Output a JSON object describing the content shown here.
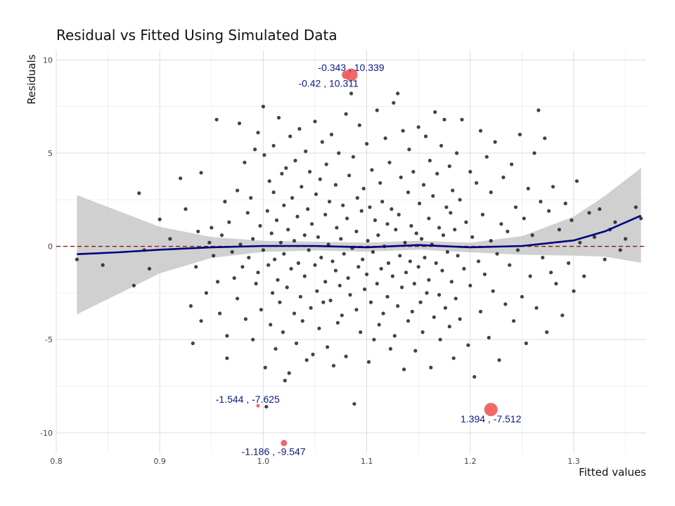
{
  "chart_data": {
    "type": "scatter",
    "title": "Residual vs Fitted Using Simulated Data",
    "xlabel": "Fitted values",
    "ylabel": "Residuals",
    "xlim": [
      0.8,
      1.37
    ],
    "ylim": [
      -11.1,
      10.5
    ],
    "x_ticks": [
      "0.8",
      "0.9",
      "1.0",
      "1.1",
      "1.2",
      "1.3"
    ],
    "y_ticks": [
      "-10",
      "-5",
      "0",
      "5",
      "10"
    ],
    "grid": true,
    "reference_line": {
      "y": 0,
      "color": "#8b1a1a",
      "style": "dashed"
    },
    "point_color": "#222222",
    "smooth_color": "#000080",
    "band_color": "#c8c8c8",
    "highlight_color": "#f06060",
    "annotation_color": "#0b1a84",
    "smooth": [
      [
        0.82,
        -0.42
      ],
      [
        0.86,
        -0.32
      ],
      [
        0.9,
        -0.18
      ],
      [
        0.95,
        -0.05
      ],
      [
        1.0,
        0.02
      ],
      [
        1.05,
        0.02
      ],
      [
        1.1,
        -0.05
      ],
      [
        1.15,
        0.07
      ],
      [
        1.2,
        -0.05
      ],
      [
        1.25,
        0.02
      ],
      [
        1.3,
        0.32
      ],
      [
        1.33,
        0.8
      ],
      [
        1.365,
        1.65
      ]
    ],
    "band_upper": [
      [
        0.82,
        2.75
      ],
      [
        0.86,
        1.9
      ],
      [
        0.9,
        1.05
      ],
      [
        0.95,
        0.5
      ],
      [
        1.0,
        0.3
      ],
      [
        1.05,
        0.25
      ],
      [
        1.1,
        0.2
      ],
      [
        1.15,
        0.3
      ],
      [
        1.2,
        0.2
      ],
      [
        1.25,
        0.55
      ],
      [
        1.3,
        1.6
      ],
      [
        1.33,
        2.7
      ],
      [
        1.365,
        4.2
      ]
    ],
    "band_lower": [
      [
        0.82,
        -3.65
      ],
      [
        0.86,
        -2.55
      ],
      [
        0.9,
        -1.45
      ],
      [
        0.95,
        -0.62
      ],
      [
        1.0,
        -0.3
      ],
      [
        1.05,
        -0.22
      ],
      [
        1.1,
        -0.28
      ],
      [
        1.15,
        -0.18
      ],
      [
        1.2,
        -0.32
      ],
      [
        1.25,
        -0.45
      ],
      [
        1.3,
        -0.5
      ],
      [
        1.33,
        -0.55
      ],
      [
        1.365,
        -0.88
      ]
    ],
    "highlighted": [
      {
        "x": 1.085,
        "y": 9.2,
        "size": 9,
        "label": "-0.343 , 10.339",
        "label_x": 1.085,
        "label_y": 9.6
      },
      {
        "x": 1.08,
        "y": 9.2,
        "size": 6,
        "label": "-0.42 , 10.311",
        "label_x": 1.063,
        "label_y": 8.75
      },
      {
        "x": 0.995,
        "y": -8.55,
        "size": 2.5,
        "label": "-1.544 , -7.625",
        "label_x": 0.985,
        "label_y": -8.2
      },
      {
        "x": 1.02,
        "y": -10.55,
        "size": 4.5,
        "label": "-1.186 , -9.547",
        "label_x": 1.01,
        "label_y": -11.0
      },
      {
        "x": 1.22,
        "y": -8.75,
        "size": 9.5,
        "label": "1.394 , -7.512",
        "label_x": 1.22,
        "label_y": -9.25
      }
    ],
    "points": [
      [
        0.82,
        -0.7
      ],
      [
        0.845,
        -1.0
      ],
      [
        0.875,
        -2.1
      ],
      [
        0.88,
        2.85
      ],
      [
        0.885,
        -0.2
      ],
      [
        0.89,
        -1.2
      ],
      [
        0.9,
        1.45
      ],
      [
        0.91,
        0.4
      ],
      [
        0.92,
        3.65
      ],
      [
        0.925,
        2.0
      ],
      [
        0.93,
        -3.2
      ],
      [
        0.932,
        -5.2
      ],
      [
        0.935,
        -1.1
      ],
      [
        0.937,
        0.8
      ],
      [
        0.94,
        3.95
      ],
      [
        0.94,
        -4.0
      ],
      [
        0.945,
        -2.5
      ],
      [
        0.948,
        0.2
      ],
      [
        0.95,
        1.0
      ],
      [
        0.952,
        -0.5
      ],
      [
        0.955,
        6.8
      ],
      [
        0.956,
        -1.9
      ],
      [
        0.958,
        -3.6
      ],
      [
        0.96,
        0.6
      ],
      [
        0.963,
        2.4
      ],
      [
        0.965,
        -6.0
      ],
      [
        0.965,
        -4.8
      ],
      [
        0.967,
        1.3
      ],
      [
        0.97,
        -0.3
      ],
      [
        0.972,
        -1.7
      ],
      [
        0.975,
        3.0
      ],
      [
        0.975,
        -2.8
      ],
      [
        0.977,
        6.6
      ],
      [
        0.978,
        0.1
      ],
      [
        0.98,
        -1.1
      ],
      [
        0.982,
        4.5
      ],
      [
        0.983,
        -3.9
      ],
      [
        0.985,
        1.8
      ],
      [
        0.986,
        -0.6
      ],
      [
        0.988,
        2.6
      ],
      [
        0.99,
        -5.0
      ],
      [
        0.99,
        0.4
      ],
      [
        0.992,
        5.2
      ],
      [
        0.993,
        -2.0
      ],
      [
        0.995,
        6.1
      ],
      [
        0.995,
        -1.4
      ],
      [
        0.997,
        1.1
      ],
      [
        0.998,
        -3.4
      ],
      [
        1.0,
        7.5
      ],
      [
        1.0,
        -0.2
      ],
      [
        1.001,
        4.9
      ],
      [
        1.002,
        -6.5
      ],
      [
        1.003,
        -8.6
      ],
      [
        1.004,
        1.9
      ],
      [
        1.005,
        -1.0
      ],
      [
        1.006,
        3.5
      ],
      [
        1.007,
        -4.2
      ],
      [
        1.008,
        0.7
      ],
      [
        1.009,
        -2.5
      ],
      [
        1.01,
        2.9
      ],
      [
        1.01,
        5.4
      ],
      [
        1.011,
        -0.7
      ],
      [
        1.012,
        -5.5
      ],
      [
        1.013,
        1.4
      ],
      [
        1.014,
        -1.8
      ],
      [
        1.015,
        6.9
      ],
      [
        1.016,
        -3.0
      ],
      [
        1.017,
        0.2
      ],
      [
        1.018,
        3.9
      ],
      [
        1.019,
        -4.6
      ],
      [
        1.02,
        2.2
      ],
      [
        1.02,
        -0.4
      ],
      [
        1.021,
        -7.2
      ],
      [
        1.022,
        4.2
      ],
      [
        1.023,
        -2.2
      ],
      [
        1.024,
        0.9
      ],
      [
        1.025,
        -6.8
      ],
      [
        1.026,
        5.9
      ],
      [
        1.027,
        -1.2
      ],
      [
        1.028,
        2.6
      ],
      [
        1.03,
        -3.6
      ],
      [
        1.03,
        0.3
      ],
      [
        1.031,
        4.6
      ],
      [
        1.032,
        -5.2
      ],
      [
        1.033,
        1.6
      ],
      [
        1.034,
        -0.9
      ],
      [
        1.035,
        6.3
      ],
      [
        1.036,
        -2.7
      ],
      [
        1.037,
        3.2
      ],
      [
        1.038,
        -4.0
      ],
      [
        1.04,
        0.6
      ],
      [
        1.04,
        -1.6
      ],
      [
        1.041,
        5.1
      ],
      [
        1.042,
        -6.1
      ],
      [
        1.043,
        2.0
      ],
      [
        1.044,
        -0.2
      ],
      [
        1.045,
        4.0
      ],
      [
        1.046,
        -3.3
      ],
      [
        1.047,
        1.2
      ],
      [
        1.048,
        -5.8
      ],
      [
        1.05,
        6.7
      ],
      [
        1.05,
        -1.0
      ],
      [
        1.051,
        2.8
      ],
      [
        1.052,
        -2.4
      ],
      [
        1.053,
        0.5
      ],
      [
        1.054,
        -4.4
      ],
      [
        1.055,
        3.6
      ],
      [
        1.056,
        -0.6
      ],
      [
        1.057,
        5.6
      ],
      [
        1.058,
        -3.0
      ],
      [
        1.06,
        1.7
      ],
      [
        1.06,
        -1.9
      ],
      [
        1.061,
        4.4
      ],
      [
        1.062,
        -5.4
      ],
      [
        1.063,
        0.1
      ],
      [
        1.064,
        2.4
      ],
      [
        1.065,
        -2.9
      ],
      [
        1.066,
        6.0
      ],
      [
        1.067,
        -0.8
      ],
      [
        1.068,
        -6.4
      ],
      [
        1.07,
        3.3
      ],
      [
        1.07,
        -1.3
      ],
      [
        1.071,
        1.0
      ],
      [
        1.072,
        -4.1
      ],
      [
        1.073,
        5.0
      ],
      [
        1.074,
        -2.1
      ],
      [
        1.075,
        0.4
      ],
      [
        1.076,
        -3.7
      ],
      [
        1.077,
        2.2
      ],
      [
        1.078,
        -0.4
      ],
      [
        1.08,
        7.1
      ],
      [
        1.08,
        -5.9
      ],
      [
        1.081,
        1.5
      ],
      [
        1.082,
        -1.7
      ],
      [
        1.083,
        3.8
      ],
      [
        1.084,
        -2.6
      ],
      [
        1.085,
        8.2
      ],
      [
        1.086,
        -0.1
      ],
      [
        1.087,
        4.8
      ],
      [
        1.088,
        -8.45
      ],
      [
        1.09,
        -3.4
      ],
      [
        1.09,
        0.8
      ],
      [
        1.091,
        2.6
      ],
      [
        1.092,
        -1.1
      ],
      [
        1.093,
        6.5
      ],
      [
        1.094,
        -4.6
      ],
      [
        1.095,
        1.9
      ],
      [
        1.096,
        -0.7
      ],
      [
        1.097,
        3.1
      ],
      [
        1.098,
        -2.3
      ],
      [
        1.1,
        5.5
      ],
      [
        1.1,
        -1.5
      ],
      [
        1.101,
        0.3
      ],
      [
        1.102,
        -6.2
      ],
      [
        1.103,
        2.1
      ],
      [
        1.104,
        -3.0
      ],
      [
        1.105,
        4.1
      ],
      [
        1.106,
        -0.3
      ],
      [
        1.107,
        -5.0
      ],
      [
        1.108,
        1.4
      ],
      [
        1.11,
        7.3
      ],
      [
        1.11,
        -2.0
      ],
      [
        1.111,
        0.6
      ],
      [
        1.112,
        -4.2
      ],
      [
        1.113,
        3.4
      ],
      [
        1.114,
        -1.2
      ],
      [
        1.115,
        2.4
      ],
      [
        1.116,
        -3.6
      ],
      [
        1.117,
        0.0
      ],
      [
        1.118,
        5.8
      ],
      [
        1.12,
        -2.7
      ],
      [
        1.12,
        1.2
      ],
      [
        1.121,
        -0.9
      ],
      [
        1.122,
        4.5
      ],
      [
        1.123,
        -5.5
      ],
      [
        1.124,
        2.0
      ],
      [
        1.125,
        -1.6
      ],
      [
        1.126,
        7.7
      ],
      [
        1.127,
        -4.8
      ],
      [
        1.128,
        0.9
      ],
      [
        1.13,
        8.2
      ],
      [
        1.13,
        -3.2
      ],
      [
        1.131,
        1.7
      ],
      [
        1.132,
        -0.5
      ],
      [
        1.133,
        3.7
      ],
      [
        1.134,
        -2.2
      ],
      [
        1.135,
        6.2
      ],
      [
        1.136,
        -6.6
      ],
      [
        1.137,
        0.2
      ],
      [
        1.138,
        -1.4
      ],
      [
        1.14,
        2.9
      ],
      [
        1.14,
        -4.0
      ],
      [
        1.141,
        5.2
      ],
      [
        1.142,
        -0.8
      ],
      [
        1.143,
        1.1
      ],
      [
        1.144,
        -3.5
      ],
      [
        1.145,
        4.0
      ],
      [
        1.146,
        -2.0
      ],
      [
        1.147,
        -5.6
      ],
      [
        1.148,
        0.7
      ],
      [
        1.15,
        6.4
      ],
      [
        1.15,
        -1.1
      ],
      [
        1.151,
        2.3
      ],
      [
        1.152,
        -3.0
      ],
      [
        1.153,
        0.4
      ],
      [
        1.154,
        -4.6
      ],
      [
        1.155,
        3.3
      ],
      [
        1.156,
        -0.6
      ],
      [
        1.157,
        5.9
      ],
      [
        1.158,
        -2.5
      ],
      [
        1.16,
        1.5
      ],
      [
        1.16,
        -1.8
      ],
      [
        1.161,
        4.6
      ],
      [
        1.162,
        -6.5
      ],
      [
        1.163,
        0.1
      ],
      [
        1.164,
        2.7
      ],
      [
        1.165,
        -3.8
      ],
      [
        1.166,
        7.2
      ],
      [
        1.167,
        -0.9
      ],
      [
        1.168,
        3.9
      ],
      [
        1.17,
        -2.6
      ],
      [
        1.17,
        1.0
      ],
      [
        1.171,
        -5.0
      ],
      [
        1.172,
        5.4
      ],
      [
        1.173,
        -1.3
      ],
      [
        1.174,
        0.6
      ],
      [
        1.175,
        6.8
      ],
      [
        1.176,
        -3.3
      ],
      [
        1.177,
        2.1
      ],
      [
        1.178,
        -0.3
      ],
      [
        1.18,
        4.3
      ],
      [
        1.18,
        -4.3
      ],
      [
        1.181,
        1.8
      ],
      [
        1.182,
        -1.9
      ],
      [
        1.183,
        3.0
      ],
      [
        1.184,
        -6.0
      ],
      [
        1.185,
        0.9
      ],
      [
        1.186,
        -2.8
      ],
      [
        1.187,
        5.0
      ],
      [
        1.188,
        -0.5
      ],
      [
        1.19,
        2.5
      ],
      [
        1.19,
        -3.9
      ],
      [
        1.192,
        6.8
      ],
      [
        1.194,
        -1.2
      ],
      [
        1.196,
        1.3
      ],
      [
        1.198,
        -5.3
      ],
      [
        1.2,
        4.0
      ],
      [
        1.2,
        -2.1
      ],
      [
        1.202,
        0.5
      ],
      [
        1.204,
        -7.0
      ],
      [
        1.206,
        3.4
      ],
      [
        1.208,
        -0.8
      ],
      [
        1.21,
        6.2
      ],
      [
        1.21,
        -3.5
      ],
      [
        1.212,
        1.7
      ],
      [
        1.214,
        -1.5
      ],
      [
        1.216,
        4.8
      ],
      [
        1.218,
        -4.9
      ],
      [
        1.22,
        0.3
      ],
      [
        1.22,
        2.9
      ],
      [
        1.222,
        -2.4
      ],
      [
        1.224,
        5.6
      ],
      [
        1.226,
        -0.4
      ],
      [
        1.228,
        -6.1
      ],
      [
        1.23,
        1.2
      ],
      [
        1.232,
        3.7
      ],
      [
        1.234,
        -3.1
      ],
      [
        1.236,
        0.8
      ],
      [
        1.238,
        -1.0
      ],
      [
        1.24,
        4.4
      ],
      [
        1.242,
        -4.0
      ],
      [
        1.244,
        2.1
      ],
      [
        1.246,
        -0.2
      ],
      [
        1.248,
        6.0
      ],
      [
        1.25,
        -2.7
      ],
      [
        1.252,
        1.5
      ],
      [
        1.254,
        -5.2
      ],
      [
        1.256,
        3.1
      ],
      [
        1.258,
        -1.6
      ],
      [
        1.26,
        0.6
      ],
      [
        1.262,
        5.0
      ],
      [
        1.264,
        -3.3
      ],
      [
        1.266,
        7.3
      ],
      [
        1.268,
        2.4
      ],
      [
        1.27,
        -0.6
      ],
      [
        1.272,
        5.8
      ],
      [
        1.274,
        -4.6
      ],
      [
        1.276,
        1.9
      ],
      [
        1.278,
        -1.4
      ],
      [
        1.28,
        3.2
      ],
      [
        1.283,
        -2.0
      ],
      [
        1.286,
        0.9
      ],
      [
        1.289,
        -3.7
      ],
      [
        1.292,
        2.3
      ],
      [
        1.295,
        -0.9
      ],
      [
        1.298,
        1.4
      ],
      [
        1.3,
        -2.4
      ],
      [
        1.303,
        3.5
      ],
      [
        1.306,
        0.2
      ],
      [
        1.31,
        -1.6
      ],
      [
        1.315,
        1.8
      ],
      [
        1.32,
        0.5
      ],
      [
        1.325,
        2.0
      ],
      [
        1.33,
        -0.7
      ],
      [
        1.335,
        0.9
      ],
      [
        1.34,
        1.3
      ],
      [
        1.345,
        -0.2
      ],
      [
        1.35,
        0.4
      ],
      [
        1.36,
        2.1
      ],
      [
        1.365,
        1.5
      ]
    ]
  }
}
